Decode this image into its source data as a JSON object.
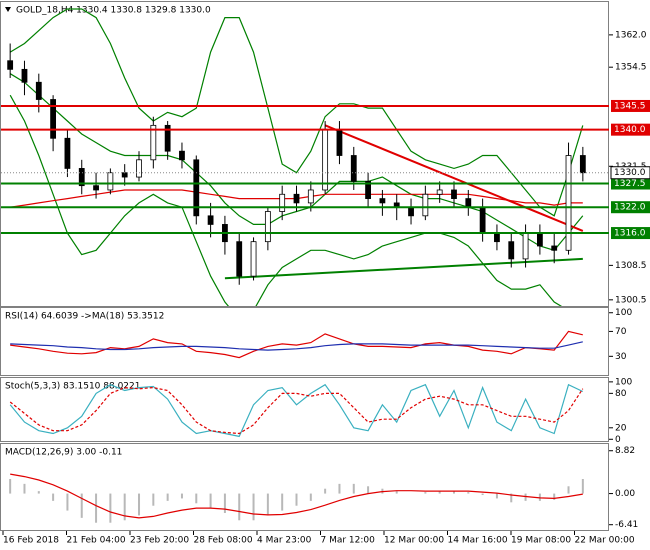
{
  "chart_data": [
    {
      "type": "candlestick",
      "title": "GOLD_18,H4 1330.4 1330.8 1329.8 1330.0",
      "open": [
        1356,
        1354,
        1351,
        1347,
        1338,
        1331,
        1327,
        1326,
        1330,
        1329,
        1333,
        1341,
        1335,
        1333,
        1320,
        1318,
        1314,
        1306,
        1314,
        1321,
        1325,
        1323,
        1326,
        1340,
        1334,
        1328,
        1324,
        1323,
        1322,
        1320,
        1325,
        1326,
        1324,
        1322,
        1316,
        1314,
        1310,
        1316,
        1313,
        1312,
        1334
      ],
      "high": [
        1360,
        1356,
        1353,
        1348,
        1340,
        1333,
        1330,
        1331,
        1332,
        1335,
        1343,
        1342,
        1337,
        1334,
        1323,
        1320,
        1316,
        1315,
        1322,
        1327,
        1327,
        1328,
        1342,
        1342,
        1336,
        1330,
        1326,
        1325,
        1324,
        1327,
        1328,
        1328,
        1326,
        1324,
        1318,
        1316,
        1318,
        1318,
        1316,
        1337,
        1336
      ],
      "low": [
        1352,
        1348,
        1344,
        1335,
        1329,
        1325,
        1324,
        1325,
        1327,
        1328,
        1331,
        1333,
        1331,
        1318,
        1315,
        1311,
        1304,
        1305,
        1312,
        1319,
        1321,
        1321,
        1325,
        1332,
        1326,
        1322,
        1320,
        1319,
        1318,
        1319,
        1323,
        1322,
        1320,
        1314,
        1312,
        1308,
        1308,
        1311,
        1309,
        1311,
        1328
      ],
      "close": [
        1354,
        1351,
        1347,
        1338,
        1331,
        1327,
        1326,
        1330,
        1329,
        1333,
        1341,
        1335,
        1333,
        1320,
        1318,
        1314,
        1306,
        1314,
        1321,
        1325,
        1323,
        1326,
        1340,
        1334,
        1328,
        1324,
        1323,
        1322,
        1320,
        1325,
        1326,
        1324,
        1322,
        1316,
        1314,
        1310,
        1316,
        1313,
        1312,
        1334,
        1330
      ],
      "bull_color": "#ffffff",
      "bear_color": "#000000",
      "overlays": [
        {
          "color": "#008000",
          "values": [
            1358,
            1360,
            1363,
            1366,
            1368,
            1368,
            1366,
            1360,
            1352,
            1345,
            1342,
            1344,
            1343,
            1345,
            1358,
            1366,
            1366,
            1358,
            1345,
            1332,
            1330,
            1335,
            1343,
            1346,
            1346,
            1345,
            1345,
            1340,
            1335,
            1333,
            1332,
            1331,
            1332,
            1334,
            1334,
            1330,
            1326,
            1322,
            1320,
            1330,
            1341
          ]
        },
        {
          "color": "#008000",
          "values": [
            1348,
            1342,
            1334,
            1325,
            1316,
            1311,
            1312,
            1316,
            1320,
            1323,
            1325,
            1323,
            1322,
            1314,
            1306,
            1300,
            1296,
            1298,
            1304,
            1308,
            1310,
            1312,
            1312,
            1311,
            1310,
            1311,
            1313,
            1314,
            1315,
            1316,
            1316,
            1315,
            1313,
            1309,
            1305,
            1303,
            1303,
            1304,
            1300,
            1298,
            1297
          ]
        },
        {
          "color": "#008000",
          "values": [
            1353,
            1351,
            1348,
            1345,
            1342,
            1339,
            1337,
            1335,
            1334,
            1334,
            1334,
            1334,
            1333,
            1330,
            1327,
            1323,
            1320,
            1318,
            1318,
            1320,
            1321,
            1322,
            1325,
            1328,
            1328,
            1328,
            1329,
            1327,
            1325,
            1324,
            1324,
            1323,
            1322,
            1321,
            1319,
            1317,
            1315,
            1313,
            1312,
            1316,
            1320
          ]
        },
        {
          "color": "#e00000",
          "values": [
            1322,
            1322.5,
            1323,
            1323.5,
            1324,
            1324.5,
            1325,
            1325.5,
            1326,
            1326,
            1326,
            1326,
            1326,
            1325.5,
            1325,
            1324.5,
            1324,
            1324,
            1324,
            1324,
            1324,
            1324.5,
            1325,
            1325,
            1325,
            1325,
            1325,
            1325,
            1325,
            1325,
            1325,
            1325,
            1325,
            1324.5,
            1324,
            1323.5,
            1323,
            1323,
            1322.5,
            1323,
            1323
          ]
        }
      ],
      "trendlines": [
        {
          "color": "#e00000",
          "x": [
            22,
            40
          ],
          "y": [
            1341,
            1316.5
          ]
        },
        {
          "color": "#008000",
          "x": [
            15,
            40
          ],
          "y": [
            1305.5,
            1310
          ]
        }
      ],
      "levels": [
        {
          "value": 1345.5,
          "color": "#e00000"
        },
        {
          "value": 1340,
          "label": "1340.0",
          "color": "#e00000"
        },
        {
          "value": 1327.5,
          "color": "#008000"
        },
        {
          "value": 1322,
          "label": "1322.0",
          "color": "#008000"
        },
        {
          "value": 1316,
          "label": "1316.0",
          "color": "#008000"
        }
      ],
      "current": {
        "value": 1330,
        "label": "1330.0"
      },
      "ylim": [
        1299.3,
        1369.4
      ],
      "yticks": [
        {
          "value": 1362,
          "label": "1362.0"
        },
        1354.5,
        1331.5,
        1308.5,
        1300.5
      ]
    },
    {
      "type": "line",
      "title": "RSI(14) 64.6039 ->MA(18) 53.3512",
      "series": [
        {
          "color": "#e00000",
          "values": [
            48,
            45,
            42,
            38,
            35,
            34,
            36,
            44,
            42,
            46,
            58,
            52,
            50,
            38,
            36,
            33,
            28,
            38,
            46,
            50,
            48,
            52,
            66,
            58,
            50,
            46,
            46,
            45,
            44,
            50,
            52,
            48,
            46,
            40,
            38,
            34,
            44,
            42,
            40,
            70,
            64.6039
          ]
        },
        {
          "color": "#1f2fb0",
          "values": [
            50,
            49,
            48,
            47,
            45,
            44,
            42,
            41,
            41,
            42,
            44,
            45,
            46,
            46,
            45,
            44,
            42,
            41,
            40,
            41,
            42,
            44,
            47,
            49,
            50,
            50,
            50,
            49,
            48,
            48,
            48,
            48,
            48,
            47,
            46,
            45,
            44,
            43,
            43,
            48,
            53.3512
          ]
        }
      ],
      "ylim": [
        0,
        106
      ],
      "yticks": [
        100,
        70,
        30
      ]
    },
    {
      "type": "line",
      "title": "Stoch(5,3,3) 83.1510 88.0221",
      "series": [
        {
          "color": "#3ab0c0",
          "values": [
            60,
            30,
            15,
            10,
            20,
            40,
            80,
            95,
            85,
            90,
            92,
            70,
            30,
            10,
            15,
            10,
            5,
            60,
            85,
            90,
            60,
            80,
            95,
            60,
            20,
            15,
            60,
            30,
            85,
            95,
            40,
            85,
            20,
            90,
            30,
            15,
            70,
            20,
            10,
            95,
            83.151
          ]
        },
        {
          "color": "#e00000",
          "dashed": true,
          "values": [
            65,
            45,
            25,
            15,
            15,
            25,
            50,
            80,
            90,
            88,
            90,
            85,
            60,
            30,
            15,
            12,
            10,
            25,
            55,
            80,
            80,
            75,
            80,
            80,
            55,
            30,
            35,
            35,
            55,
            70,
            75,
            70,
            60,
            60,
            50,
            40,
            40,
            35,
            30,
            50,
            88.0221
          ]
        }
      ],
      "ylim": [
        -3,
        105
      ],
      "yticks": [
        100,
        80,
        20,
        0
      ]
    },
    {
      "type": "macd",
      "title": "MACD(12,26,9) 3.00 -0.11",
      "series": [
        {
          "color": "#b8b8b8",
          "values": [
            3,
            2,
            0.5,
            -1.5,
            -3.5,
            -5,
            -6,
            -6,
            -5.5,
            -4.5,
            -2.5,
            -1.5,
            -1,
            -2,
            -3,
            -4,
            -5.5,
            -5.5,
            -4.5,
            -3.5,
            -2.5,
            -1.5,
            1,
            2,
            2,
            1.5,
            1,
            0.5,
            0,
            0.3,
            0.5,
            0.5,
            0.3,
            -0.3,
            -1,
            -1.8,
            -1.5,
            -1.5,
            -1.3,
            1.5,
            3
          ]
        },
        {
          "color": "#e00000",
          "values": [
            4,
            3.5,
            2.8,
            1.8,
            0.5,
            -1,
            -2.5,
            -3.8,
            -4.6,
            -5,
            -4.7,
            -4,
            -3.4,
            -3,
            -3,
            -3.2,
            -3.7,
            -4.2,
            -4.4,
            -4.3,
            -3.9,
            -3.3,
            -2.4,
            -1.4,
            -0.6,
            0,
            0.4,
            0.6,
            0.6,
            0.5,
            0.5,
            0.5,
            0.5,
            0.3,
            0.1,
            -0.3,
            -0.6,
            -0.9,
            -1,
            -0.6,
            -0.11
          ]
        }
      ],
      "ylim": [
        -7.5,
        10
      ],
      "yticks": [
        8.82,
        {
          "value": 0,
          "label": "0.00"
        },
        -6.41
      ]
    }
  ],
  "x_labels": [
    "16 Feb 2018",
    "21 Feb 04:00",
    "23 Feb 20:00",
    "28 Feb 08:00",
    "4 Mar 23:00",
    "7 Mar 12:00",
    "12 Mar 00:00",
    "14 Mar 16:00",
    "19 Mar 08:00",
    "22 Mar 00:00"
  ]
}
